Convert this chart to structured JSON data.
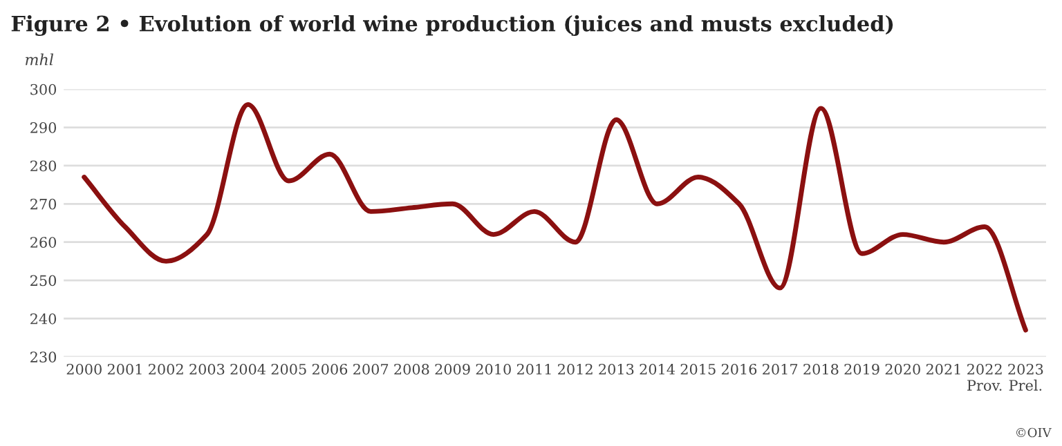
{
  "chart_data": {
    "type": "line",
    "title": "Figure 2 • Evolution of world wine production (juices and musts excluded)",
    "ylabel": "mhl",
    "categories": [
      "2000",
      "2001",
      "2002",
      "2003",
      "2004",
      "2005",
      "2006",
      "2007",
      "2008",
      "2009",
      "2010",
      "2011",
      "2012",
      "2013",
      "2014",
      "2015",
      "2016",
      "2017",
      "2018",
      "2019",
      "2020",
      "2021",
      "2022\nProv.",
      "2023\nPrel."
    ],
    "series": [
      {
        "color": "#8b1010",
        "values": [
          277,
          264,
          255,
          262,
          296,
          276,
          283,
          268,
          269,
          270,
          262,
          268,
          260,
          292,
          270,
          277,
          270,
          248,
          295,
          257,
          262,
          260,
          264,
          237
        ]
      }
    ],
    "ylim": [
      230,
      300
    ],
    "yticks": [
      230,
      240,
      250,
      260,
      270,
      280,
      290,
      300
    ],
    "grid": "y",
    "legend": false,
    "marker": "none",
    "line_style": "solid",
    "annotations": [
      "©OIV"
    ]
  }
}
